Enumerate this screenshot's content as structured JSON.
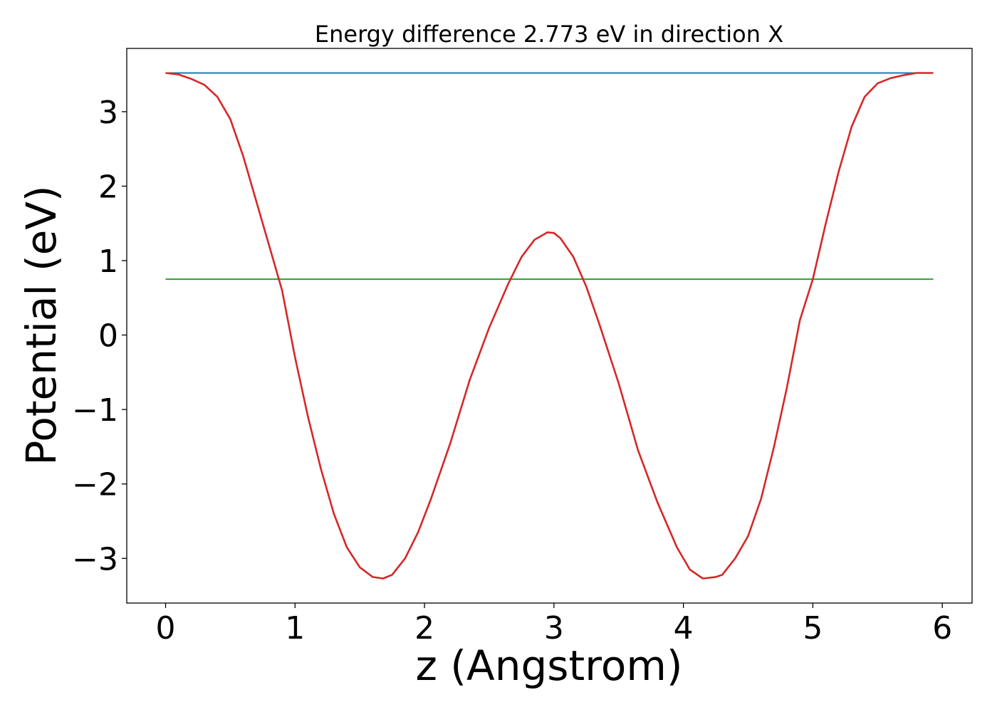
{
  "chart_data": {
    "type": "line",
    "title": "Energy difference 2.773 eV in direction X",
    "xlabel": "z (Angstrom)",
    "ylabel": "Potential (eV)",
    "xlim": [
      -0.3,
      6.23
    ],
    "ylim": [
      -3.6,
      3.85
    ],
    "xticks": [
      0,
      1,
      2,
      3,
      4,
      5,
      6
    ],
    "xtick_labels": [
      "0",
      "1",
      "2",
      "3",
      "4",
      "5",
      "6"
    ],
    "yticks": [
      -3,
      -2,
      -1,
      0,
      1,
      2,
      3
    ],
    "ytick_labels": [
      "−3",
      "−2",
      "−1",
      "0",
      "1",
      "2",
      "3"
    ],
    "grid": false,
    "series": [
      {
        "color": "#1f77b4",
        "x": [
          0,
          5.93
        ],
        "y": [
          3.52,
          3.52
        ]
      },
      {
        "color": "#2ca02c",
        "x": [
          0,
          5.93
        ],
        "y": [
          0.75,
          0.75
        ]
      },
      {
        "color": "#d62728",
        "x": [
          0,
          0.1,
          0.2,
          0.3,
          0.4,
          0.5,
          0.6,
          0.7,
          0.8,
          0.9,
          1.0,
          1.1,
          1.2,
          1.3,
          1.4,
          1.5,
          1.6,
          1.68,
          1.75,
          1.85,
          1.95,
          2.05,
          2.2,
          2.35,
          2.5,
          2.65,
          2.75,
          2.85,
          2.95,
          3.0,
          3.05,
          3.15,
          3.25,
          3.35,
          3.5,
          3.65,
          3.8,
          3.95,
          4.05,
          4.15,
          4.25,
          4.3,
          4.4,
          4.5,
          4.6,
          4.7,
          4.8,
          4.9,
          5.0,
          5.1,
          5.2,
          5.3,
          5.4,
          5.5,
          5.6,
          5.7,
          5.8,
          5.93
        ],
        "y": [
          3.52,
          3.5,
          3.44,
          3.36,
          3.2,
          2.9,
          2.4,
          1.8,
          1.2,
          0.6,
          -0.3,
          -1.1,
          -1.8,
          -2.4,
          -2.85,
          -3.12,
          -3.25,
          -3.27,
          -3.22,
          -3.0,
          -2.65,
          -2.2,
          -1.45,
          -0.6,
          0.1,
          0.7,
          1.05,
          1.28,
          1.38,
          1.37,
          1.3,
          1.05,
          0.65,
          0.15,
          -0.65,
          -1.55,
          -2.25,
          -2.85,
          -3.15,
          -3.27,
          -3.25,
          -3.22,
          -3.0,
          -2.7,
          -2.2,
          -1.5,
          -0.7,
          0.2,
          0.75,
          1.5,
          2.2,
          2.8,
          3.2,
          3.38,
          3.45,
          3.49,
          3.52,
          3.52
        ]
      }
    ]
  }
}
